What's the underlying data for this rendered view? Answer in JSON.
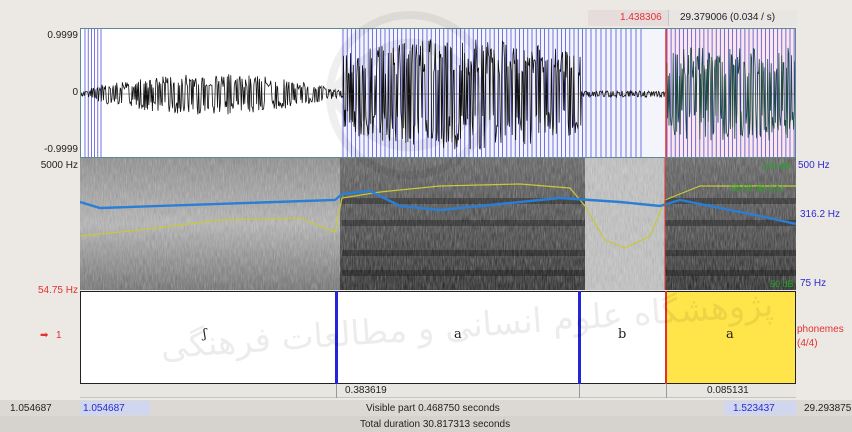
{
  "header": {
    "cursor_time": "1.438306",
    "selection_info": "29.379006 (0.034 / s)"
  },
  "waveform": {
    "y_top": "0.9999",
    "y_mid": "0",
    "y_bottom": "-0.9999"
  },
  "spectrogram": {
    "freq_top": "5000 Hz",
    "freq_bottom": "54.75 Hz",
    "db_top": "100 dB",
    "pitch_top": "500 Hz",
    "db_mid": "68.60 dB (i.f.)",
    "pitch_mid": "316.2 Hz",
    "db_bottom": "50 dB",
    "pitch_bottom": "75 Hz"
  },
  "tier": {
    "index_label": "1",
    "name": "phonemes",
    "count": "(4/4)",
    "intervals": [
      "ʃ",
      "a",
      "b",
      "a"
    ]
  },
  "durations": {
    "interval_2": "0.383619",
    "selected": "0.085131"
  },
  "footer": {
    "window_start": "1.054687",
    "visible_start": "1.054687",
    "visible_part": "Visible part 0.468750 seconds",
    "visible_end": "1.523437",
    "window_end": "29.293875",
    "total_duration": "Total duration 30.817313 seconds"
  },
  "watermark": {
    "text": "پژوهشگاه علوم انسانی و مطالعات فرهنگی"
  },
  "colors": {
    "boundary": "#2424d8",
    "selection_fill": "#ffe54a",
    "pitch_curve": "#2a7fd4",
    "intensity_curve": "#c8c83a",
    "label_red": "#e53030",
    "label_green": "#1fa81f"
  }
}
